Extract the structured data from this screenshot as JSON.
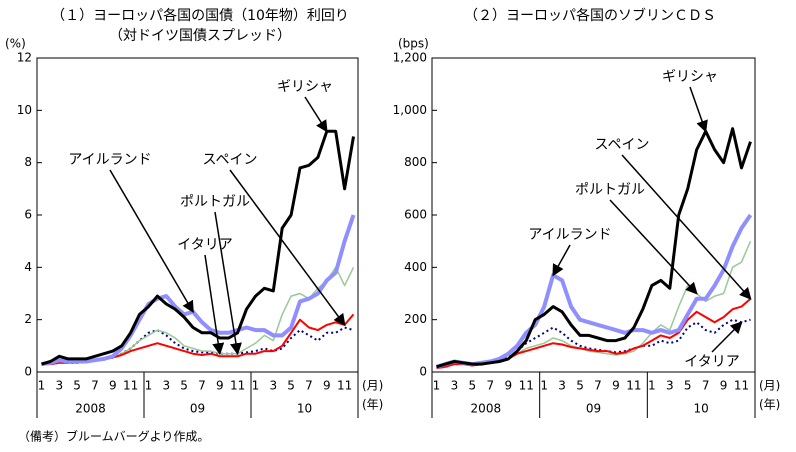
{
  "note": "（備考）ブルームバーグより作成。",
  "chart_data": [
    {
      "type": "line",
      "title": "（１）ヨーロッパ各国の国債（10年物）利回り",
      "subtitle": "（対ドイツ国債スプレッド）",
      "y_label": "(%)",
      "x_label": "(月)",
      "x_group_label": "(年)",
      "categories": [
        "1",
        null,
        "3",
        null,
        "5",
        null,
        "7",
        null,
        "9",
        null,
        "11",
        null,
        "1",
        null,
        "3",
        null,
        "5",
        null,
        "7",
        null,
        "9",
        null,
        "11",
        null,
        "1",
        null,
        "3",
        null,
        "5",
        null,
        "7",
        null,
        "9",
        null,
        "11",
        null
      ],
      "x_groups": [
        "2008",
        "09",
        "10"
      ],
      "ylim": [
        0,
        12
      ],
      "yticks": [
        0,
        2,
        4,
        6,
        8,
        10,
        12
      ],
      "series": [
        {
          "name": "ギリシャ",
          "color": "#000000",
          "line_style": "solid",
          "values": [
            0.3,
            0.4,
            0.6,
            0.5,
            0.5,
            0.5,
            0.6,
            0.7,
            0.8,
            1.0,
            1.5,
            2.2,
            2.5,
            2.9,
            2.6,
            2.4,
            2.1,
            1.7,
            1.5,
            1.5,
            1.3,
            1.3,
            1.5,
            2.4,
            2.9,
            3.2,
            3.1,
            5.5,
            6.0,
            7.8,
            7.9,
            8.2,
            9.2,
            9.2,
            7.0,
            9.0
          ]
        },
        {
          "name": "アイルランド",
          "color": "#8f8fff",
          "line_style": "solid",
          "values": [
            0.3,
            0.35,
            0.45,
            0.4,
            0.4,
            0.4,
            0.45,
            0.5,
            0.6,
            0.9,
            1.4,
            2.0,
            2.6,
            2.8,
            2.9,
            2.5,
            2.2,
            2.3,
            1.9,
            1.6,
            1.5,
            1.5,
            1.6,
            1.7,
            1.6,
            1.6,
            1.4,
            1.4,
            1.7,
            2.7,
            2.8,
            3.0,
            3.5,
            3.8,
            5.0,
            6.0
          ]
        },
        {
          "name": "スペイン",
          "color": "#ff0000",
          "line_style": "solid",
          "values": [
            0.3,
            0.3,
            0.35,
            0.35,
            0.35,
            0.4,
            0.45,
            0.5,
            0.55,
            0.65,
            0.8,
            0.9,
            1.0,
            1.1,
            1.0,
            0.9,
            0.8,
            0.7,
            0.65,
            0.7,
            0.6,
            0.6,
            0.6,
            0.7,
            0.7,
            0.8,
            0.8,
            1.0,
            1.5,
            2.0,
            1.7,
            1.6,
            1.8,
            1.9,
            1.8,
            2.2
          ]
        },
        {
          "name": "ポルトガル",
          "color": "#99c899",
          "line_style": "solid",
          "values": [
            0.3,
            0.35,
            0.4,
            0.4,
            0.4,
            0.4,
            0.45,
            0.5,
            0.55,
            0.7,
            0.9,
            1.2,
            1.4,
            1.6,
            1.5,
            1.3,
            1.0,
            0.9,
            0.8,
            0.8,
            0.7,
            0.7,
            0.7,
            0.9,
            1.1,
            1.4,
            1.2,
            2.2,
            2.9,
            3.0,
            2.8,
            3.2,
            3.5,
            4.0,
            3.3,
            4.0
          ]
        },
        {
          "name": "イタリア",
          "color": "#000080",
          "line_style": "dotted",
          "values": [
            0.3,
            0.3,
            0.35,
            0.35,
            0.35,
            0.4,
            0.45,
            0.5,
            0.55,
            0.7,
            0.9,
            1.2,
            1.5,
            1.6,
            1.4,
            1.1,
            0.9,
            0.8,
            0.75,
            0.75,
            0.7,
            0.7,
            0.7,
            0.75,
            0.8,
            0.9,
            0.8,
            0.9,
            1.3,
            1.6,
            1.4,
            1.2,
            1.5,
            1.5,
            1.7,
            1.6
          ]
        }
      ]
    },
    {
      "type": "line",
      "title": "（２）ヨーロッパ各国のソブリンＣＤＳ",
      "y_label": "(bps)",
      "x_label": "(月)",
      "x_group_label": "(年)",
      "categories": [
        "1",
        null,
        "3",
        null,
        "5",
        null,
        "7",
        null,
        "9",
        null,
        "11",
        null,
        "1",
        null,
        "3",
        null,
        "5",
        null,
        "7",
        null,
        "9",
        null,
        "11",
        null,
        "1",
        null,
        "3",
        null,
        "5",
        null,
        "7",
        null,
        "9",
        null,
        "11",
        null
      ],
      "x_groups": [
        "2008",
        "09",
        "10"
      ],
      "ylim": [
        0,
        1200
      ],
      "yticks": [
        0,
        200,
        400,
        600,
        800,
        {
          "value": 1000,
          "label": "1,000"
        },
        {
          "value": 1200,
          "label": "1,200"
        }
      ],
      "series": [
        {
          "name": "ギリシャ",
          "color": "#000000",
          "line_style": "solid",
          "values": [
            20,
            30,
            40,
            35,
            30,
            30,
            35,
            40,
            50,
            80,
            120,
            200,
            220,
            250,
            230,
            180,
            140,
            140,
            130,
            120,
            120,
            130,
            170,
            240,
            330,
            350,
            320,
            600,
            700,
            850,
            920,
            850,
            800,
            930,
            780,
            880
          ]
        },
        {
          "name": "アイルランド",
          "color": "#8f8fff",
          "line_style": "solid",
          "values": [
            20,
            30,
            40,
            35,
            30,
            35,
            40,
            50,
            70,
            100,
            150,
            180,
            250,
            370,
            350,
            250,
            200,
            190,
            180,
            170,
            160,
            150,
            160,
            160,
            150,
            160,
            150,
            160,
            220,
            280,
            280,
            330,
            390,
            480,
            550,
            600
          ]
        },
        {
          "name": "スペイン",
          "color": "#ff0000",
          "line_style": "solid",
          "values": [
            15,
            20,
            30,
            30,
            25,
            30,
            35,
            40,
            50,
            70,
            80,
            90,
            100,
            110,
            105,
            95,
            90,
            85,
            80,
            80,
            70,
            75,
            90,
            100,
            120,
            140,
            130,
            150,
            200,
            230,
            210,
            190,
            210,
            240,
            250,
            280
          ]
        },
        {
          "name": "ポルトガル",
          "color": "#99c899",
          "line_style": "solid",
          "values": [
            15,
            20,
            30,
            30,
            25,
            30,
            35,
            40,
            50,
            70,
            90,
            100,
            110,
            130,
            120,
            100,
            90,
            80,
            75,
            70,
            65,
            70,
            80,
            110,
            150,
            180,
            160,
            250,
            330,
            300,
            270,
            290,
            300,
            400,
            420,
            500
          ]
        },
        {
          "name": "イタリア",
          "color": "#000080",
          "line_style": "dotted",
          "values": [
            15,
            20,
            30,
            30,
            25,
            30,
            35,
            40,
            55,
            80,
            110,
            130,
            150,
            170,
            150,
            120,
            100,
            90,
            85,
            80,
            75,
            80,
            90,
            100,
            100,
            120,
            110,
            120,
            170,
            190,
            160,
            150,
            180,
            200,
            190,
            200
          ]
        }
      ]
    }
  ]
}
